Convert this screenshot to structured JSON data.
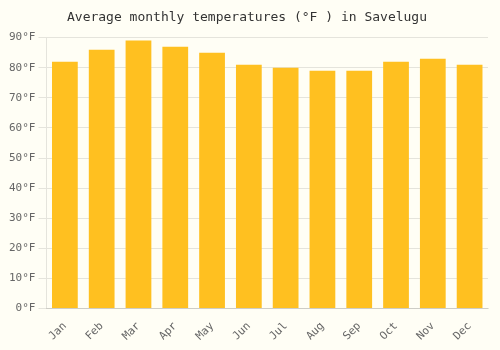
{
  "chart_data": {
    "type": "bar",
    "title": "Average monthly temperatures (°F ) in Savelugu",
    "categories": [
      "Jan",
      "Feb",
      "Mar",
      "Apr",
      "May",
      "Jun",
      "Jul",
      "Aug",
      "Sep",
      "Oct",
      "Nov",
      "Dec"
    ],
    "values": [
      82,
      86,
      89,
      87,
      85,
      81,
      80,
      79,
      79,
      82,
      83,
      81
    ],
    "color": "#FFC020",
    "ylim": [
      0,
      90
    ],
    "yticks": [
      {
        "value": 0,
        "label": "0°F"
      },
      {
        "value": 10,
        "label": "10°F"
      },
      {
        "value": 20,
        "label": "20°F"
      },
      {
        "value": 30,
        "label": "30°F"
      },
      {
        "value": 40,
        "label": "40°F"
      },
      {
        "value": 50,
        "label": "50°F"
      },
      {
        "value": 60,
        "label": "60°F"
      },
      {
        "value": 70,
        "label": "70°F"
      },
      {
        "value": 80,
        "label": "80°F"
      },
      {
        "value": 90,
        "label": "90°F"
      }
    ],
    "grid": true
  }
}
